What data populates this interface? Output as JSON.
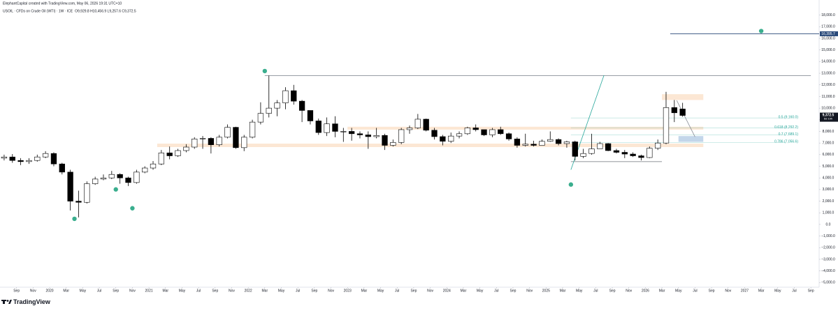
{
  "chart_data": {
    "type": "candlestick",
    "subtitle": "ElephantCapital created with TradingView.com, May 06, 2026 19:31 UTC+10",
    "title": "USOIL · CFDs on Crude Oil (WTI) · 1W · ICE",
    "ohlc_text": "O9,929.8 H10,456.9 L9,257.6 C9,372.5",
    "x": [
      "2019-07",
      "2019-08",
      "2019-09",
      "2019-10",
      "2019-11",
      "2019-12",
      "2020-01",
      "2020-02",
      "2020-03",
      "2020-04",
      "2020-05",
      "2020-06",
      "2020-07",
      "2020-08",
      "2020-09",
      "2020-10",
      "2020-11",
      "2020-12",
      "2021-01",
      "2021-02",
      "2021-03",
      "2021-04",
      "2021-05",
      "2021-06",
      "2021-07",
      "2021-08",
      "2021-09",
      "2021-10",
      "2021-11",
      "2021-12",
      "2022-01",
      "2022-02",
      "2022-03",
      "2022-04",
      "2022-05",
      "2022-06",
      "2022-07",
      "2022-08",
      "2022-09",
      "2022-10",
      "2022-11",
      "2022-12",
      "2023-01",
      "2023-02",
      "2023-03",
      "2023-04",
      "2023-05",
      "2023-06",
      "2023-07",
      "2023-08",
      "2023-09",
      "2023-10",
      "2023-11",
      "2023-12",
      "2024-01",
      "2024-02",
      "2024-03",
      "2024-04",
      "2024-05",
      "2024-06",
      "2024-07",
      "2024-08",
      "2024-09",
      "2024-10",
      "2024-11",
      "2024-12",
      "2025-01",
      "2025-02",
      "2025-03",
      "2025-04",
      "2025-05",
      "2025-06",
      "2025-07",
      "2025-08",
      "2025-09",
      "2025-10",
      "2025-11",
      "2025-12",
      "2026-01",
      "2026-02",
      "2026-03",
      "2026-04",
      "2026-05"
    ],
    "open": [
      5700,
      5800,
      5500,
      5400,
      5500,
      5800,
      6100,
      5200,
      4500,
      2000,
      1900,
      3500,
      3900,
      4000,
      4300,
      4000,
      3600,
      4500,
      4850,
      5200,
      6150,
      5900,
      6350,
      6650,
      7350,
      7400,
      6850,
      7500,
      8350,
      6600,
      7500,
      8800,
      9550,
      10000,
      10450,
      11500,
      10600,
      9800,
      8900,
      7900,
      8650,
      8000,
      8000,
      7800,
      7700,
      7550,
      7650,
      6800,
      7050,
      8150,
      8300,
      9050,
      8100,
      7550,
      7150,
      7600,
      7800,
      8300,
      8150,
      7700,
      8150,
      7800,
      7350,
      6800,
      6900,
      6800,
      7150,
      7300,
      6950,
      7100,
      5850,
      6100,
      6500,
      6950,
      6350,
      6200,
      6050,
      5900,
      5750,
      6550,
      7000,
      10050,
      9929.8
    ],
    "high": [
      6000,
      6050,
      5700,
      5700,
      6000,
      6300,
      6200,
      5300,
      4700,
      2900,
      3700,
      4100,
      4300,
      4600,
      4400,
      4100,
      4700,
      5000,
      5450,
      6400,
      6700,
      6500,
      6900,
      7500,
      7600,
      7500,
      7700,
      8600,
      8400,
      7700,
      9000,
      10500,
      12800,
      10700,
      11800,
      12000,
      10700,
      9700,
      9100,
      9200,
      9300,
      8300,
      8300,
      8000,
      8000,
      8300,
      7800,
      7300,
      8300,
      8500,
      9500,
      9100,
      8300,
      7700,
      7900,
      8000,
      8400,
      8600,
      8100,
      8300,
      8400,
      7900,
      7500,
      7800,
      7200,
      7300,
      8000,
      7400,
      7200,
      7200,
      6500,
      7800,
      7100,
      7000,
      6500,
      6400,
      6200,
      6000,
      6700,
      7300,
      11400,
      10700,
      10456.9
    ],
    "low": [
      5500,
      5300,
      5100,
      5200,
      5400,
      5700,
      5000,
      4300,
      1200,
      600,
      1800,
      3400,
      3800,
      3900,
      3500,
      3300,
      3500,
      4400,
      4700,
      5100,
      5600,
      5800,
      6200,
      6500,
      6500,
      6100,
      6700,
      7400,
      6500,
      6300,
      7400,
      8600,
      9200,
      9300,
      9900,
      10300,
      8800,
      8600,
      7700,
      7600,
      7500,
      7100,
      7200,
      7400,
      6500,
      7400,
      6400,
      6700,
      6900,
      7800,
      8200,
      8000,
      7300,
      6800,
      7000,
      7400,
      7700,
      8000,
      7600,
      7500,
      7700,
      7200,
      6600,
      6700,
      6700,
      6800,
      7100,
      6800,
      6600,
      5500,
      5700,
      6000,
      6500,
      6300,
      6100,
      5700,
      5800,
      5500,
      5700,
      6400,
      6900,
      8800,
      9257.6
    ],
    "close": [
      5800,
      5500,
      5400,
      5500,
      5800,
      6100,
      5200,
      4500,
      2000,
      1900,
      3500,
      3900,
      4000,
      4300,
      4000,
      3600,
      4500,
      4850,
      5200,
      6150,
      5900,
      6350,
      6650,
      7350,
      7400,
      6850,
      7500,
      8350,
      6600,
      7500,
      8800,
      9550,
      10000,
      10450,
      11500,
      10600,
      9800,
      8900,
      7900,
      8650,
      8000,
      8000,
      7800,
      7700,
      7550,
      7650,
      6800,
      7050,
      8150,
      8300,
      9050,
      8100,
      7550,
      7150,
      7600,
      7800,
      8300,
      8150,
      7700,
      8150,
      7800,
      7350,
      6800,
      6900,
      6800,
      7150,
      7300,
      6950,
      7100,
      5850,
      6100,
      6500,
      6950,
      6350,
      6200,
      6050,
      5900,
      5750,
      6550,
      7000,
      10050,
      9600,
      9372.5
    ],
    "up_color": "#ffffff",
    "down_color": "#000000",
    "xlim": [
      "2019-07",
      "2027-10"
    ],
    "xticks": [
      {
        "value": "2019-09",
        "label": "Sep"
      },
      {
        "value": "2019-11",
        "label": "Nov"
      },
      {
        "value": "2020-01",
        "label": "2020"
      },
      {
        "value": "2020-03",
        "label": "Mar"
      },
      {
        "value": "2020-05",
        "label": "May"
      },
      {
        "value": "2020-07",
        "label": "Jul"
      },
      {
        "value": "2020-09",
        "label": "Sep"
      },
      {
        "value": "2020-11",
        "label": "Nov"
      },
      {
        "value": "2021-01",
        "label": "2021"
      },
      {
        "value": "2021-03",
        "label": "Mar"
      },
      {
        "value": "2021-05",
        "label": "May"
      },
      {
        "value": "2021-07",
        "label": "Jul"
      },
      {
        "value": "2021-09",
        "label": "Sep"
      },
      {
        "value": "2021-11",
        "label": "Nov"
      },
      {
        "value": "2022-01",
        "label": "2022"
      },
      {
        "value": "2022-03",
        "label": "Mar"
      },
      {
        "value": "2022-05",
        "label": "May"
      },
      {
        "value": "2022-07",
        "label": "Jul"
      },
      {
        "value": "2022-09",
        "label": "Sep"
      },
      {
        "value": "2022-11",
        "label": "Nov"
      },
      {
        "value": "2023-01",
        "label": "2023"
      },
      {
        "value": "2023-03",
        "label": "Mar"
      },
      {
        "value": "2023-05",
        "label": "May"
      },
      {
        "value": "2023-07",
        "label": "Jul"
      },
      {
        "value": "2023-09",
        "label": "Sep"
      },
      {
        "value": "2023-11",
        "label": "Nov"
      },
      {
        "value": "2024-01",
        "label": "2024"
      },
      {
        "value": "2024-03",
        "label": "Mar"
      },
      {
        "value": "2024-05",
        "label": "May"
      },
      {
        "value": "2024-07",
        "label": "Jul"
      },
      {
        "value": "2024-09",
        "label": "Sep"
      },
      {
        "value": "2024-11",
        "label": "Nov"
      },
      {
        "value": "2025-01",
        "label": "2025"
      },
      {
        "value": "2025-03",
        "label": "Mar"
      },
      {
        "value": "2025-05",
        "label": "May"
      },
      {
        "value": "2025-07",
        "label": "Jul"
      },
      {
        "value": "2025-09",
        "label": "Sep"
      },
      {
        "value": "2025-11",
        "label": "Nov"
      },
      {
        "value": "2026-01",
        "label": "2026"
      },
      {
        "value": "2026-03",
        "label": "Mar"
      },
      {
        "value": "2026-05",
        "label": "May"
      },
      {
        "value": "2026-07",
        "label": "Jul"
      },
      {
        "value": "2026-09",
        "label": "Sep"
      },
      {
        "value": "2026-11",
        "label": "Nov"
      },
      {
        "value": "2027-01",
        "label": "2027"
      },
      {
        "value": "2027-03",
        "label": "Mar"
      },
      {
        "value": "2027-05",
        "label": "May"
      },
      {
        "value": "2027-07",
        "label": "Jul"
      },
      {
        "value": "2027-09",
        "label": "Sep"
      }
    ],
    "ylim": [
      -5400,
      18700
    ],
    "yticks": [
      {
        "value": 18000,
        "label": "18,000.0"
      },
      {
        "value": 17000,
        "label": "17,000.0"
      },
      {
        "value": 16000,
        "label": "16,000.0"
      },
      {
        "value": 15000,
        "label": "15,000.0"
      },
      {
        "value": 14000,
        "label": "14,000.0"
      },
      {
        "value": 13000,
        "label": "13,000.0"
      },
      {
        "value": 12000,
        "label": "12,000.0"
      },
      {
        "value": 11000,
        "label": "11,000.0"
      },
      {
        "value": 10000,
        "label": "10,000.0"
      },
      {
        "value": 9000,
        "label": "9,000.0"
      },
      {
        "value": 8000,
        "label": "8,000.0"
      },
      {
        "value": 7000,
        "label": "7,000.0"
      },
      {
        "value": 6000,
        "label": "6,000.0"
      },
      {
        "value": 5000,
        "label": "5,000.0"
      },
      {
        "value": 4000,
        "label": "4,000.0"
      },
      {
        "value": 3000,
        "label": "3,000.0"
      },
      {
        "value": 2000,
        "label": "2,000.0"
      },
      {
        "value": 1000,
        "label": "1,000.0"
      },
      {
        "value": 0,
        "label": "0.0"
      },
      {
        "value": -1000,
        "label": "−1,000.0"
      },
      {
        "value": -2000,
        "label": "−2,000.0"
      },
      {
        "value": -3000,
        "label": "−3,000.0"
      },
      {
        "value": -4000,
        "label": "−4,000.0"
      },
      {
        "value": -5000,
        "label": "−5,000.0"
      }
    ],
    "zones": [
      {
        "from": "2021-02",
        "to": "2026-08",
        "low": 6650,
        "high": 6950,
        "color": "#fbe3cc"
      },
      {
        "from": "2023-01",
        "to": "2026-08",
        "low": 8150,
        "high": 8400,
        "color": "#fbe3cc"
      },
      {
        "from": "2026-03",
        "to": "2026-08",
        "low": 10700,
        "high": 11200,
        "color": "#fbe3cc"
      },
      {
        "from": "2026-05",
        "to": "2026-08",
        "low": 7100,
        "high": 7600,
        "color": "#b9cfe6"
      }
    ],
    "lines": [
      {
        "from": "2022-03",
        "to": "2027-09",
        "value": 12800,
        "color": "#8a8f98"
      },
      {
        "from": "2025-04",
        "to": "2026-03",
        "value": 5400,
        "color": "#6b7078"
      },
      {
        "from": "2026-04",
        "to": "2027-10",
        "value": 16395.7,
        "color": "#2a4a7a"
      }
    ],
    "trendlines": [
      {
        "from": "2025-04",
        "to": "2025-08",
        "start": 4700,
        "end": 12830,
        "color": "#26a69a"
      },
      {
        "from": "2026-04-25",
        "to": "2026-07",
        "start": 10660,
        "end": 7530,
        "color": "#8a8f98"
      }
    ],
    "fib_levels": [
      {
        "value": 9160,
        "label": "0.5 (9,160.0)"
      },
      {
        "value": 8292.2,
        "label": "0.618 (8,292.2)"
      },
      {
        "value": 7689.1,
        "label": "0.7 (7,689.1)"
      },
      {
        "value": 7056.6,
        "label": "0.786 (7,056.6)"
      }
    ],
    "fib_from": "2025-04",
    "fib_to": "2027-06",
    "fib_color": "#26a69a",
    "dots": [
      {
        "x": "2020-04",
        "y": 480
      },
      {
        "x": "2020-09",
        "y": 3010
      },
      {
        "x": "2020-11",
        "y": 1390
      },
      {
        "x": "2022-03",
        "y": 13190
      },
      {
        "x": "2025-04",
        "y": 3430
      },
      {
        "x": "2027-03",
        "y": 16630
      }
    ],
    "dot_color": "#3aae8e",
    "level_label": {
      "value": 16395.7,
      "label": "16,395.7"
    },
    "last_price": {
      "value": 9372.5,
      "label": "9,372.5",
      "countdown": "6d 19h"
    }
  },
  "brand": "TradingView"
}
